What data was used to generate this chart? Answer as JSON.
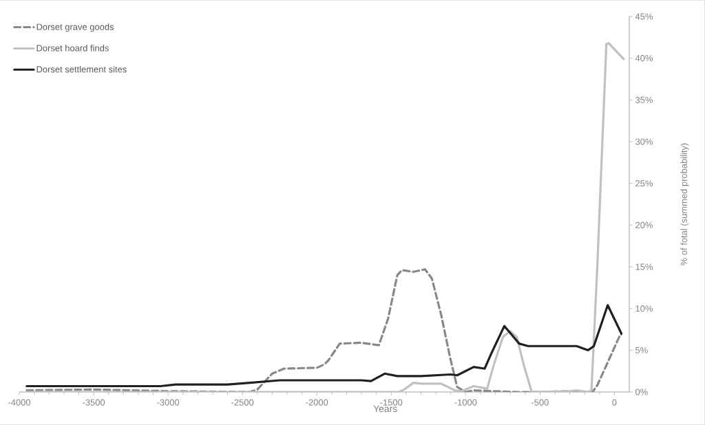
{
  "chart_data": {
    "type": "line",
    "xlabel": "Years",
    "ylabel": "% of fotal (summed probability)",
    "xlim": [
      -4000,
      100
    ],
    "xticks": [
      -4000,
      -3500,
      -3000,
      -2500,
      -2000,
      -1500,
      -1000,
      -500,
      0
    ],
    "ylim": [
      0,
      45
    ],
    "yticks": [
      {
        "value": 0,
        "label": "0%"
      },
      {
        "value": 5,
        "label": "5%"
      },
      {
        "value": 10,
        "label": "10%"
      },
      {
        "value": 15,
        "label": "15%"
      },
      {
        "value": 20,
        "label": "20%"
      },
      {
        "value": 25,
        "label": "25%"
      },
      {
        "value": 30,
        "label": "30%"
      },
      {
        "value": 35,
        "label": "35%"
      },
      {
        "value": 40,
        "label": "40%"
      },
      {
        "value": 45,
        "label": "45%"
      }
    ],
    "grid": false,
    "legend": "top left",
    "series": [
      {
        "name": "Dorset grave goods",
        "color": "#87888a",
        "line_style": "dashed",
        "x": [
          -3950,
          -3500,
          -3000,
          -2450,
          -2400,
          -2300,
          -2220,
          -2000,
          -1950,
          -1922,
          -1846,
          -1700,
          -1583,
          -1521,
          -1459,
          -1428,
          -1351,
          -1273,
          -1227,
          -1165,
          -1104,
          -1057,
          -1000,
          -946,
          -810,
          -656,
          -500,
          -300,
          -200,
          -147,
          -115,
          40,
          47
        ],
        "values": [
          0.2,
          0.3,
          0.1,
          0,
          0.3,
          2.2,
          2.8,
          2.9,
          3.3,
          3.8,
          5.8,
          5.9,
          5.6,
          8.8,
          14.0,
          14.6,
          14.4,
          14.7,
          13.6,
          9.3,
          4.1,
          0.6,
          0,
          0.2,
          0.1,
          0,
          0,
          0.1,
          0,
          0,
          0.8,
          6.9,
          6.9
        ]
      },
      {
        "name": "Dorset hoard finds",
        "color": "#c0c0c0",
        "line_style": "solid",
        "x": [
          -3950,
          -1450,
          -1413,
          -1351,
          -1300,
          -1165,
          -1073,
          -1027,
          -946,
          -855,
          -810,
          -749,
          -702,
          -656,
          -610,
          -556,
          -300,
          -254,
          -177,
          -154,
          -115,
          -54,
          -38,
          62
        ],
        "values": [
          0,
          0,
          0.3,
          1.1,
          1.0,
          1.0,
          0.2,
          0.1,
          0.7,
          0.4,
          3.3,
          6.6,
          7.3,
          6.6,
          3.3,
          0,
          0.1,
          0.2,
          0,
          0.2,
          15,
          41.7,
          41.8,
          39.9
        ]
      },
      {
        "name": "Dorset settlement sites",
        "color": "#231f20",
        "line_style": "solid",
        "x": [
          -3950,
          -3050,
          -2950,
          -2600,
          -2450,
          -2250,
          -2000,
          -1700,
          -1636,
          -1544,
          -1459,
          -1300,
          -1100,
          -1057,
          -946,
          -872,
          -825,
          -740,
          -702,
          -640,
          -579,
          -450,
          -254,
          -177,
          -138,
          -45,
          47
        ],
        "values": [
          0.7,
          0.7,
          0.9,
          0.9,
          1.1,
          1.4,
          1.4,
          1.4,
          1.3,
          2.2,
          1.9,
          1.9,
          2.1,
          2.0,
          3.0,
          2.8,
          4.7,
          7.9,
          7.1,
          5.8,
          5.5,
          5.5,
          5.5,
          5.0,
          5.5,
          10.4,
          7.0
        ]
      }
    ]
  }
}
